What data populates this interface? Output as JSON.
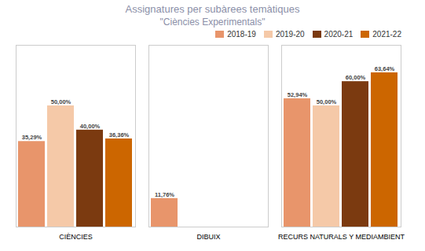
{
  "chart_data": {
    "type": "bar",
    "title": "Assignatures per subàrees temàtiques",
    "subtitle": "\"Ciències Experimentals\"",
    "categories": [
      "CIÈNCIES",
      "DIBUIX",
      "RECURS NATURALS Y MEDIAMBIENT"
    ],
    "series": [
      {
        "name": "2018-19",
        "color": "#E8956B",
        "values": [
          35.29,
          11.76,
          52.94
        ],
        "value_labels": [
          "35,29%",
          "11,76%",
          "52,94%"
        ]
      },
      {
        "name": "2019-20",
        "color": "#F5C9A8",
        "values": [
          50.0,
          0,
          50.0
        ],
        "value_labels": [
          "50,00%",
          null,
          "50,00%"
        ]
      },
      {
        "name": "2020-21",
        "color": "#7B3A10",
        "values": [
          40.0,
          0,
          60.0
        ],
        "value_labels": [
          "40,00%",
          null,
          "60,00%"
        ]
      },
      {
        "name": "2021-22",
        "color": "#CC6600",
        "values": [
          36.36,
          0,
          63.64
        ],
        "value_labels": [
          "36,36%",
          null,
          "63,64%"
        ]
      }
    ],
    "ylim": [
      0,
      75
    ],
    "grid": false,
    "legend": "upper right",
    "data_labels": true,
    "tick_labels": "x"
  }
}
